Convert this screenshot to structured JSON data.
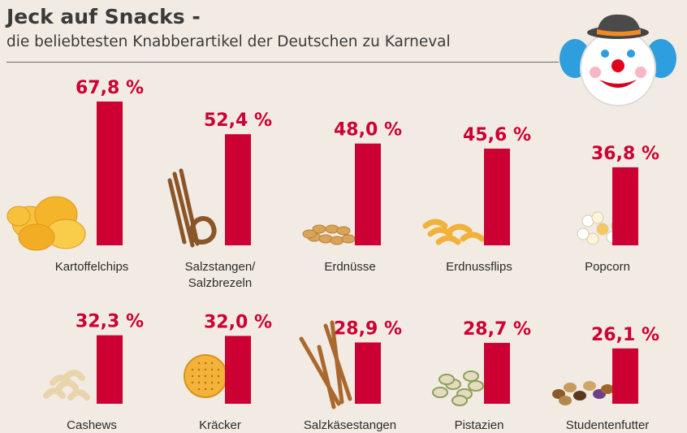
{
  "header": {
    "title": "Jeck auf Snacks -",
    "subtitle": "die beliebtesten Knabberartikel der Deutschen zu Karneval"
  },
  "colors": {
    "bar": "#cc0033",
    "value_text": "#cc0033",
    "label_text": "#2b2b2b",
    "background": "#f2ebe3"
  },
  "icons": [
    "clown-icon",
    "chips-icon",
    "pretzel-icon",
    "peanuts-icon",
    "peanut-flips-icon",
    "popcorn-icon",
    "cashews-icon",
    "cracker-icon",
    "cheese-sticks-icon",
    "pistachios-icon",
    "trail-mix-icon"
  ],
  "chart_data": {
    "type": "bar",
    "title": "Jeck auf Snacks -",
    "subtitle": "die beliebtesten Knabberartikel der Deutschen zu Karneval",
    "unit": "%",
    "categories": [
      "Kartoffelchips",
      "Salzstangen/\nSalzbrezeln",
      "Erdnüsse",
      "Erdnussflips",
      "Popcorn",
      "Cashews",
      "Kräcker",
      "Salzkäsestangen",
      "Pistazien",
      "Studentenfutter"
    ],
    "values": [
      67.8,
      52.4,
      48.0,
      45.6,
      36.8,
      32.3,
      32.0,
      28.9,
      28.7,
      26.1
    ],
    "value_labels": [
      "67,8 %",
      "52,4 %",
      "48,0 %",
      "45,6 %",
      "36,8 %",
      "32,3 %",
      "32,0 %",
      "28,9 %",
      "28,7 %",
      "26,1 %"
    ],
    "layout": "2 rows of 5",
    "grid": false,
    "legend": "none"
  }
}
